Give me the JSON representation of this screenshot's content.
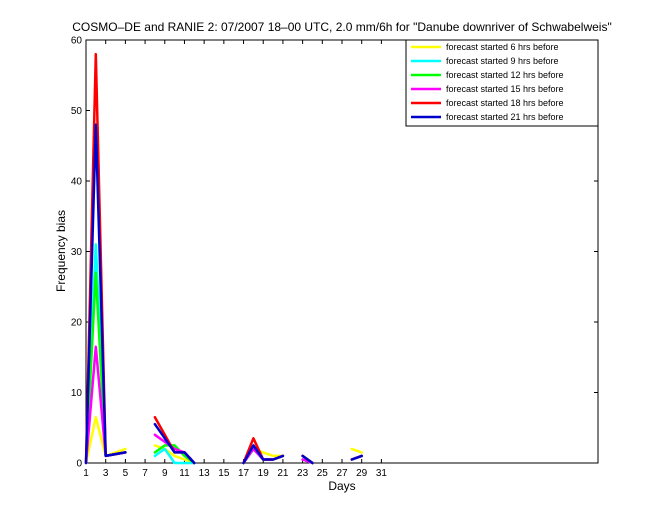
{
  "chart_data": {
    "type": "line",
    "title": "COSMO–DE and RANIE 2: 07/2007 18–00 UTC, 2.0 mm/6h for \"Danube downriver of Schwabelweis\"",
    "xlabel": "Days",
    "ylabel": "Frequency bias",
    "xlim": [
      1,
      53
    ],
    "ylim": [
      0,
      60
    ],
    "xticks": [
      1,
      3,
      5,
      7,
      9,
      11,
      13,
      15,
      17,
      19,
      21,
      23,
      25,
      27,
      29,
      31
    ],
    "yticks": [
      0,
      10,
      20,
      30,
      40,
      50,
      60
    ],
    "grid": false,
    "legend_position": "top-right",
    "series": [
      {
        "name": "forecast started 6 hrs before",
        "color": "#ffff00",
        "segments": [
          [
            [
              1,
              0
            ],
            [
              2,
              6.5
            ],
            [
              3,
              1
            ],
            [
              5,
              2
            ]
          ],
          [
            [
              8,
              2.5
            ],
            [
              9,
              2
            ],
            [
              10,
              1
            ],
            [
              11,
              0.5
            ],
            [
              12,
              0
            ]
          ],
          [
            [
              17,
              0
            ],
            [
              18,
              2
            ],
            [
              19,
              1.5
            ],
            [
              20,
              1
            ],
            [
              21,
              1
            ]
          ],
          [
            [
              23,
              1
            ],
            [
              24,
              0
            ]
          ],
          [
            [
              28,
              2
            ],
            [
              29,
              1.5
            ]
          ]
        ]
      },
      {
        "name": "forecast started 9 hrs before",
        "color": "#00ffff",
        "segments": [
          [
            [
              1,
              0
            ],
            [
              2,
              31
            ],
            [
              3,
              1
            ],
            [
              5,
              1.5
            ]
          ],
          [
            [
              8,
              1
            ],
            [
              9,
              2
            ],
            [
              10,
              0
            ],
            [
              11,
              0
            ],
            [
              12,
              0
            ]
          ],
          [
            [
              17,
              0
            ],
            [
              18,
              2
            ],
            [
              19,
              0.5
            ],
            [
              20,
              0.5
            ],
            [
              21,
              1
            ]
          ],
          [
            [
              23,
              0.5
            ],
            [
              24,
              0
            ]
          ],
          [
            [
              28,
              0.5
            ],
            [
              29,
              1
            ]
          ]
        ]
      },
      {
        "name": "forecast started 12 hrs before",
        "color": "#00ff00",
        "segments": [
          [
            [
              1,
              0
            ],
            [
              2,
              27
            ],
            [
              3,
              1
            ],
            [
              5,
              1.5
            ]
          ],
          [
            [
              8,
              1.5
            ],
            [
              9,
              2.5
            ],
            [
              10,
              2.5
            ],
            [
              11,
              1
            ],
            [
              12,
              0
            ]
          ],
          [
            [
              17,
              0
            ],
            [
              18,
              2
            ],
            [
              19,
              0.5
            ],
            [
              20,
              0.5
            ],
            [
              21,
              1
            ]
          ],
          [
            [
              23,
              1
            ],
            [
              24,
              0
            ]
          ],
          [
            [
              28,
              0.5
            ],
            [
              29,
              1
            ]
          ]
        ]
      },
      {
        "name": "forecast started 15 hrs before",
        "color": "#ff00ff",
        "segments": [
          [
            [
              1,
              0
            ],
            [
              2,
              16.5
            ],
            [
              3,
              1
            ],
            [
              5,
              1.5
            ]
          ],
          [
            [
              8,
              4
            ],
            [
              9,
              3
            ],
            [
              10,
              2
            ],
            [
              11,
              1.5
            ],
            [
              12,
              0
            ]
          ],
          [
            [
              17,
              0
            ],
            [
              18,
              2
            ],
            [
              19,
              0.5
            ],
            [
              20,
              0.5
            ],
            [
              21,
              1
            ]
          ],
          [
            [
              23,
              0.5
            ],
            [
              24,
              0
            ]
          ],
          [
            [
              28,
              0.5
            ],
            [
              29,
              1
            ]
          ]
        ]
      },
      {
        "name": "forecast started 18 hrs before",
        "color": "#ff0000",
        "segments": [
          [
            [
              1,
              0
            ],
            [
              2,
              58
            ],
            [
              3,
              1
            ],
            [
              5,
              1.5
            ]
          ],
          [
            [
              8,
              6.5
            ],
            [
              9,
              4
            ],
            [
              10,
              1.5
            ],
            [
              11,
              1.5
            ],
            [
              12,
              0
            ]
          ],
          [
            [
              17,
              0
            ],
            [
              18,
              3.5
            ],
            [
              19,
              0.5
            ],
            [
              20,
              0.5
            ],
            [
              21,
              1
            ]
          ],
          [
            [
              23,
              1
            ],
            [
              24,
              0
            ]
          ],
          [
            [
              28,
              0.5
            ],
            [
              29,
              1
            ]
          ]
        ]
      },
      {
        "name": "forecast started 21 hrs before",
        "color": "#0000cc",
        "segments": [
          [
            [
              1,
              0
            ],
            [
              2,
              48
            ],
            [
              3,
              1
            ],
            [
              5,
              1.5
            ]
          ],
          [
            [
              8,
              5.5
            ],
            [
              9,
              3.5
            ],
            [
              10,
              1.5
            ],
            [
              11,
              1.5
            ],
            [
              12,
              0
            ]
          ],
          [
            [
              17,
              0
            ],
            [
              18,
              2.5
            ],
            [
              19,
              0.5
            ],
            [
              20,
              0.5
            ],
            [
              21,
              1
            ]
          ],
          [
            [
              23,
              1
            ],
            [
              24,
              0
            ]
          ],
          [
            [
              28,
              0.5
            ],
            [
              29,
              1
            ]
          ]
        ]
      }
    ]
  }
}
